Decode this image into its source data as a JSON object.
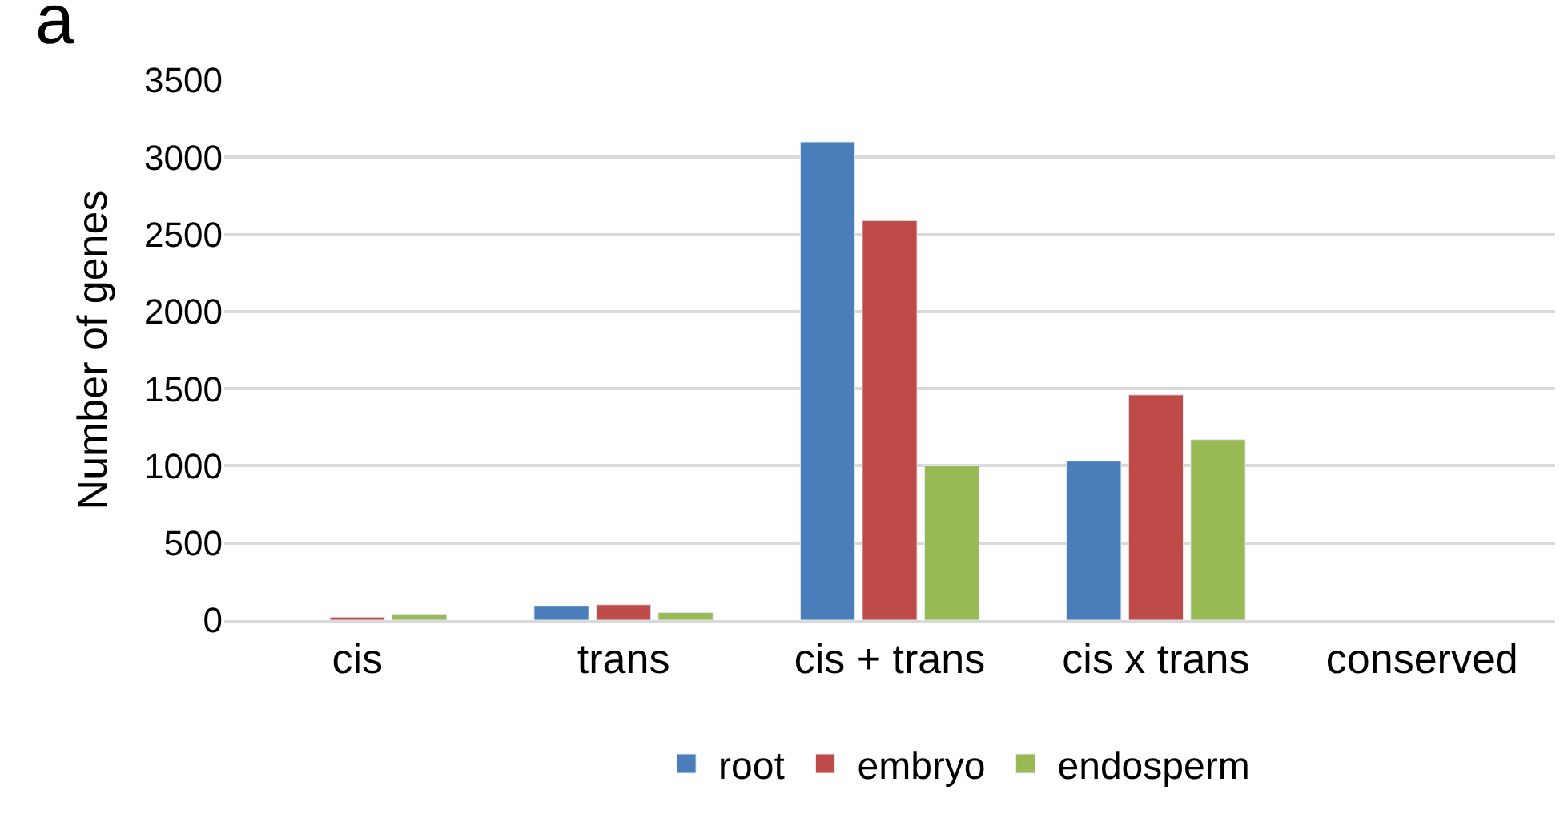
{
  "chart_data": {
    "type": "bar",
    "ylabel": "Number of genes",
    "annotations": [
      "a"
    ],
    "categories": [
      "cis",
      "trans",
      "cis + trans",
      "cis x trans",
      "conserved"
    ],
    "series": [
      {
        "name": "root",
        "color": "#4a7ebb",
        "values": [
          null,
          90,
          3100,
          1030,
          null
        ]
      },
      {
        "name": "embryo",
        "color": "#be4b48",
        "values": [
          20,
          100,
          2590,
          1460,
          null
        ]
      },
      {
        "name": "endosperm",
        "color": "#98b954",
        "values": [
          40,
          50,
          1000,
          1170,
          null
        ]
      }
    ],
    "ylim": [
      0,
      3500
    ],
    "yticks": [
      0,
      500,
      1000,
      1500,
      2000,
      2500,
      3000,
      3500
    ],
    "grid": "y",
    "legend": "bottom"
  }
}
